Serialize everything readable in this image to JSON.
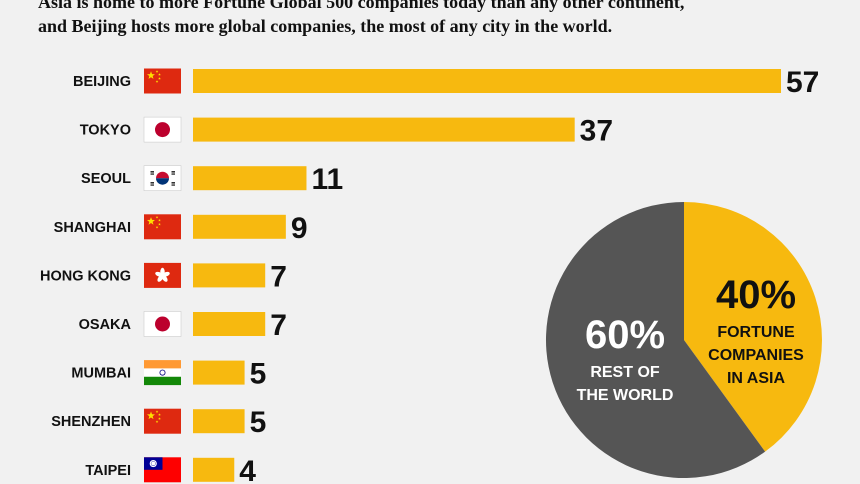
{
  "intro": {
    "line1": "Asia is home to more Fortune Global 500 companies today than any other continent,",
    "line2": "and Beijing hosts more global companies, the most of any city in the world."
  },
  "colors": {
    "bar": "#f7b90f",
    "pie_asia": "#f7b90f",
    "pie_rest": "#555555",
    "background": "#f1f1f1"
  },
  "chart_data": [
    {
      "type": "bar",
      "orientation": "horizontal",
      "categories": [
        "BEIJING",
        "TOKYO",
        "SEOUL",
        "SHANGHAI",
        "HONG KONG",
        "OSAKA",
        "MUMBAI",
        "SHENZHEN",
        "TAIPEI"
      ],
      "flags": [
        "china-flag-icon",
        "japan-flag-icon",
        "south-korea-flag-icon",
        "china-flag-icon",
        "hong-kong-flag-icon",
        "japan-flag-icon",
        "india-flag-icon",
        "china-flag-icon",
        "taiwan-flag-icon"
      ],
      "values": [
        57,
        37,
        11,
        9,
        7,
        7,
        5,
        5,
        4
      ],
      "value_labels": [
        "57",
        "37",
        "11",
        "9",
        "7",
        "7",
        "5",
        "5",
        "4"
      ],
      "xlim": [
        0,
        57
      ],
      "grid": false
    },
    {
      "type": "pie",
      "slices": [
        {
          "percent_label": "40%",
          "label_lines": [
            "FORTUNE",
            "COMPANIES",
            "IN ASIA"
          ],
          "value": 40,
          "color": "#f7b90f"
        },
        {
          "percent_label": "60%",
          "label_lines": [
            "REST OF",
            "THE WORLD"
          ],
          "value": 60,
          "color": "#555555"
        }
      ]
    }
  ]
}
